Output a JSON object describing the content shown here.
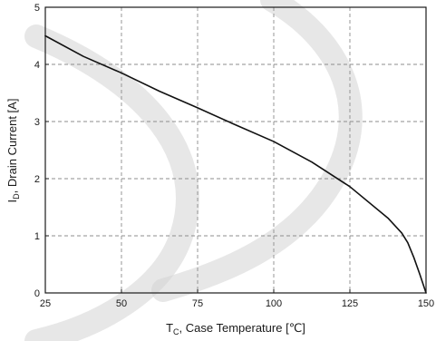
{
  "chart_data": {
    "type": "line",
    "title": "",
    "xlabel": {
      "main": "T",
      "sub": "C",
      "rest": ", Case Temperature [",
      "unit": "℃",
      "close": "]"
    },
    "ylabel": {
      "main": "I",
      "sub": "D",
      "rest": ", Drain Current [A]"
    },
    "xlim": [
      25,
      150
    ],
    "ylim": [
      0,
      5
    ],
    "xticks": [
      25,
      50,
      75,
      100,
      125,
      150
    ],
    "yticks": [
      0,
      1,
      2,
      3,
      4,
      5
    ],
    "grid": true,
    "series": [
      {
        "x": [
          25,
          37.5,
          50,
          62.5,
          75,
          87.5,
          100,
          112.5,
          125,
          137.5,
          142,
          144,
          146,
          148,
          150
        ],
        "y": [
          4.5,
          4.14,
          3.85,
          3.53,
          3.24,
          2.94,
          2.65,
          2.29,
          1.86,
          1.31,
          1.05,
          0.88,
          0.62,
          0.32,
          0.0
        ]
      }
    ]
  }
}
